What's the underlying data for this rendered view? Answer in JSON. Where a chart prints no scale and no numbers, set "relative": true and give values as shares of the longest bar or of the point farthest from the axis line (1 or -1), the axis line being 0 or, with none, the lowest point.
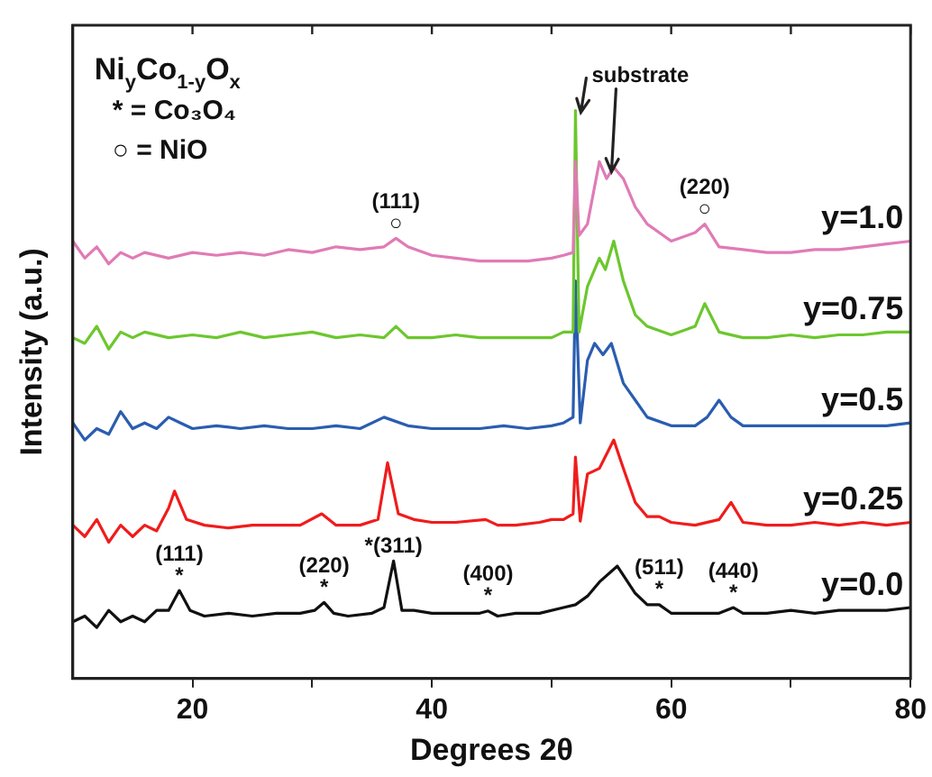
{
  "chart_data": {
    "type": "line",
    "relative": true,
    "xlabel": "Degrees 2θ",
    "ylabel": "Intensity (a.u.)",
    "xlim": [
      10,
      80
    ],
    "xticks": [
      20,
      {
        "value": 30,
        "label": null
      },
      40,
      {
        "value": 50,
        "label": null
      },
      60,
      {
        "value": 70,
        "label": null
      },
      80
    ],
    "marker": "none",
    "series": [
      {
        "name": "y=1.0",
        "color": "#e07bb5",
        "x": [
          10,
          11,
          12,
          13,
          14,
          15,
          16,
          18,
          20,
          22,
          24,
          26,
          28,
          30,
          32,
          34,
          36,
          37,
          38,
          40,
          42,
          44,
          46,
          48,
          50,
          51,
          51.8,
          52,
          52.3,
          53,
          54,
          54.6,
          55.2,
          56,
          57,
          58,
          60,
          62,
          62.8,
          64,
          66,
          68,
          70,
          72,
          74,
          76,
          78,
          80
        ],
        "values": [
          0.77,
          0.74,
          0.76,
          0.73,
          0.75,
          0.74,
          0.75,
          0.74,
          0.75,
          0.745,
          0.75,
          0.745,
          0.755,
          0.75,
          0.76,
          0.755,
          0.76,
          0.775,
          0.76,
          0.745,
          0.74,
          0.735,
          0.735,
          0.735,
          0.74,
          0.745,
          0.75,
          0.91,
          0.78,
          0.8,
          0.91,
          0.88,
          0.9,
          0.88,
          0.83,
          0.8,
          0.77,
          0.785,
          0.8,
          0.76,
          0.755,
          0.75,
          0.75,
          0.755,
          0.755,
          0.76,
          0.765,
          0.77
        ]
      },
      {
        "name": "y=0.75",
        "color": "#6cc72e",
        "x": [
          10,
          11,
          12,
          13,
          14,
          15,
          16,
          18,
          20,
          22,
          24,
          26,
          28,
          30,
          32,
          34,
          36,
          37,
          38,
          40,
          42,
          44,
          46,
          48,
          50,
          51,
          51.8,
          52,
          52.3,
          53,
          54,
          54.5,
          55.2,
          56,
          57,
          58,
          60,
          62,
          62.8,
          64,
          66,
          68,
          70,
          72,
          74,
          76,
          78,
          80
        ],
        "values": [
          0.6,
          0.59,
          0.62,
          0.58,
          0.61,
          0.6,
          0.61,
          0.6,
          0.605,
          0.6,
          0.61,
          0.6,
          0.605,
          0.61,
          0.6,
          0.605,
          0.6,
          0.62,
          0.6,
          0.6,
          0.605,
          0.6,
          0.6,
          0.6,
          0.6,
          0.61,
          0.61,
          1.0,
          0.61,
          0.69,
          0.74,
          0.72,
          0.77,
          0.7,
          0.64,
          0.62,
          0.605,
          0.62,
          0.66,
          0.61,
          0.6,
          0.6,
          0.605,
          0.6,
          0.605,
          0.605,
          0.61,
          0.61
        ]
      },
      {
        "name": "y=0.5",
        "color": "#2a5db0",
        "x": [
          10,
          11,
          12,
          13,
          14,
          15,
          16,
          17,
          18,
          19,
          20,
          22,
          24,
          26,
          28,
          30,
          32,
          34,
          36,
          38,
          40,
          42,
          44,
          46,
          48,
          50,
          51,
          51.8,
          52,
          52.4,
          53,
          53.6,
          54.3,
          55,
          56,
          57,
          58,
          60,
          62,
          63,
          64,
          65,
          66,
          68,
          70,
          72,
          74,
          76,
          78,
          80
        ],
        "values": [
          0.45,
          0.42,
          0.44,
          0.43,
          0.47,
          0.44,
          0.45,
          0.44,
          0.46,
          0.45,
          0.44,
          0.445,
          0.44,
          0.445,
          0.44,
          0.44,
          0.445,
          0.44,
          0.46,
          0.445,
          0.44,
          0.44,
          0.44,
          0.445,
          0.44,
          0.445,
          0.45,
          0.46,
          0.7,
          0.45,
          0.56,
          0.59,
          0.57,
          0.59,
          0.52,
          0.49,
          0.46,
          0.445,
          0.445,
          0.46,
          0.49,
          0.46,
          0.445,
          0.445,
          0.445,
          0.445,
          0.445,
          0.445,
          0.445,
          0.45
        ]
      },
      {
        "name": "y=0.25",
        "color": "#f01c1c",
        "x": [
          10,
          11,
          12,
          13,
          14,
          15,
          16,
          17,
          18,
          18.5,
          19.5,
          21,
          23,
          25,
          27,
          29,
          30.8,
          32,
          34,
          35.5,
          36.3,
          37.2,
          38.5,
          40,
          42,
          44.5,
          45.5,
          47,
          49,
          50,
          51,
          51.8,
          52,
          52.4,
          53,
          54,
          55.2,
          56,
          57,
          58,
          59,
          60,
          62,
          64,
          65,
          66,
          68,
          70,
          72,
          74,
          76,
          78,
          80
        ],
        "values": [
          0.27,
          0.25,
          0.28,
          0.24,
          0.27,
          0.25,
          0.27,
          0.26,
          0.3,
          0.33,
          0.28,
          0.27,
          0.265,
          0.27,
          0.27,
          0.27,
          0.29,
          0.27,
          0.27,
          0.28,
          0.38,
          0.29,
          0.28,
          0.275,
          0.275,
          0.28,
          0.27,
          0.27,
          0.275,
          0.28,
          0.28,
          0.29,
          0.39,
          0.277,
          0.36,
          0.37,
          0.42,
          0.37,
          0.31,
          0.285,
          0.285,
          0.275,
          0.27,
          0.28,
          0.31,
          0.275,
          0.27,
          0.27,
          0.275,
          0.27,
          0.275,
          0.27,
          0.275
        ]
      },
      {
        "name": "y=0.0",
        "color": "#111111",
        "x": [
          10,
          11,
          12,
          13,
          14,
          15,
          16,
          17,
          18,
          18.9,
          19.8,
          21,
          23,
          25,
          27,
          29,
          30.2,
          31,
          31.8,
          33,
          35,
          36,
          36.8,
          37.5,
          38.5,
          40,
          42,
          44,
          44.7,
          45.5,
          47,
          49,
          51,
          52,
          53,
          54,
          55.5,
          57,
          58,
          59,
          60,
          62,
          64,
          65.2,
          66,
          68,
          70,
          72,
          74,
          76,
          78,
          80
        ],
        "values": [
          0.1,
          0.11,
          0.09,
          0.12,
          0.1,
          0.11,
          0.1,
          0.12,
          0.12,
          0.155,
          0.12,
          0.11,
          0.115,
          0.11,
          0.115,
          0.115,
          0.12,
          0.134,
          0.115,
          0.11,
          0.115,
          0.125,
          0.207,
          0.12,
          0.12,
          0.115,
          0.115,
          0.115,
          0.119,
          0.11,
          0.115,
          0.115,
          0.125,
          0.13,
          0.145,
          0.17,
          0.198,
          0.15,
          0.13,
          0.13,
          0.115,
          0.115,
          0.115,
          0.125,
          0.115,
          0.115,
          0.12,
          0.115,
          0.12,
          0.12,
          0.12,
          0.125
        ]
      }
    ],
    "annotations": [
      "Ni$_{y}$Co$_{1-y}$O$_{x}$",
      "* = Co₃O₄",
      "○ = NiO",
      {
        "text": "substrate",
        "x": 52,
        "y": 1.0
      },
      {
        "text": "○",
        "x": 37,
        "y": 0.775
      },
      {
        "text": "(111)",
        "x": 37,
        "y": 0.775
      },
      {
        "text": "○",
        "x": 62.8,
        "y": 0.8
      },
      {
        "text": "(220)",
        "x": 62.8,
        "y": 0.8
      },
      {
        "text": "*",
        "x": 18.9,
        "y": 0.155
      },
      {
        "text": "(111)",
        "x": 18.9,
        "y": 0.155
      },
      {
        "text": "*",
        "x": 31,
        "y": 0.134
      },
      {
        "text": "(220)",
        "x": 31,
        "y": 0.134
      },
      {
        "text": "*(311)",
        "x": 36.8,
        "y": 0.207
      },
      {
        "text": "*",
        "x": 44.7,
        "y": 0.119
      },
      {
        "text": "(400)",
        "x": 44.7,
        "y": 0.119
      },
      {
        "text": "*",
        "x": 59,
        "y": 0.13
      },
      {
        "text": "(511)",
        "x": 59,
        "y": 0.13
      },
      {
        "text": "*",
        "x": 65.2,
        "y": 0.125
      },
      {
        "text": "(440)",
        "x": 65.2,
        "y": 0.125
      }
    ]
  }
}
